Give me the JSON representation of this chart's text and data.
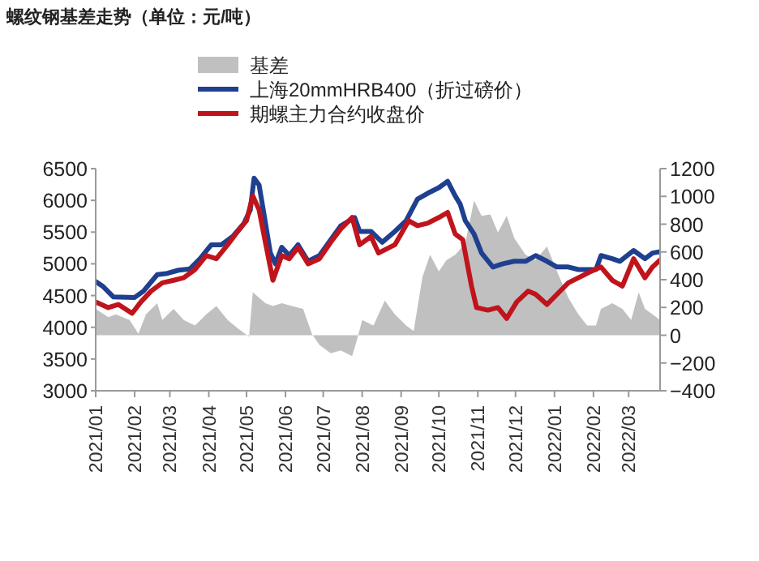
{
  "chart_data": {
    "type": "line",
    "title": "螺纹钢基差走势（单位：元/吨）",
    "legend": "top",
    "xlim": [
      "2021-01-01",
      "2022-03-26"
    ],
    "xticks": [
      {
        "value": "2021-01-01",
        "label": "2021/01"
      },
      {
        "value": "2021-02-01",
        "label": "2021/02"
      },
      {
        "value": "2021-03-01",
        "label": "2021/03"
      },
      {
        "value": "2021-04-01",
        "label": "2021/04"
      },
      {
        "value": "2021-05-01",
        "label": "2021/05"
      },
      {
        "value": "2021-06-01",
        "label": "2021/06"
      },
      {
        "value": "2021-07-01",
        "label": "2021/07"
      },
      {
        "value": "2021-08-01",
        "label": "2021/08"
      },
      {
        "value": "2021-09-01",
        "label": "2021/09"
      },
      {
        "value": "2021-10-01",
        "label": "2021/10"
      },
      {
        "value": "2021-11-01",
        "label": "2021/11"
      },
      {
        "value": "2021-12-01",
        "label": "2021/12"
      },
      {
        "value": "2022-01-01",
        "label": "2022/01"
      },
      {
        "value": "2022-02-01",
        "label": "2022/02"
      },
      {
        "value": "2022-03-01",
        "label": "2022/03"
      }
    ],
    "ylim": [
      3000,
      6500
    ],
    "yticks": [
      3000,
      3500,
      4000,
      4500,
      5000,
      5500,
      6000,
      6500
    ],
    "y2lim": [
      -400,
      1200
    ],
    "y2ticks": [
      -400,
      -200,
      0,
      200,
      400,
      600,
      800,
      1000,
      1200
    ],
    "series": [
      {
        "name": "基差",
        "type": "area",
        "axis": "y2",
        "color": "#c0c0c0",
        "x": [
          "2021-01-01",
          "2021-01-11",
          "2021-01-17",
          "2021-01-28",
          "2021-02-04",
          "2021-02-10",
          "2021-02-19",
          "2021-02-23",
          "2021-03-04",
          "2021-03-12",
          "2021-03-21",
          "2021-03-30",
          "2021-04-07",
          "2021-04-16",
          "2021-04-24",
          "2021-05-03",
          "2021-05-06",
          "2021-05-16",
          "2021-05-22",
          "2021-05-29",
          "2021-06-06",
          "2021-06-15",
          "2021-06-22",
          "2021-06-28",
          "2021-07-07",
          "2021-07-15",
          "2021-07-24",
          "2021-07-28",
          "2021-08-01",
          "2021-08-10",
          "2021-08-19",
          "2021-08-27",
          "2021-09-05",
          "2021-09-11",
          "2021-09-18",
          "2021-09-24",
          "2021-10-01",
          "2021-10-07",
          "2021-10-14",
          "2021-10-22",
          "2021-10-29",
          "2021-11-04",
          "2021-11-11",
          "2021-11-17",
          "2021-11-24",
          "2021-11-30",
          "2021-12-09",
          "2021-12-17",
          "2021-12-26",
          "2022-01-03",
          "2022-01-12",
          "2022-01-20",
          "2022-01-27",
          "2022-02-03",
          "2022-02-07",
          "2022-02-16",
          "2022-02-24",
          "2022-03-03",
          "2022-03-09",
          "2022-03-14",
          "2022-03-20",
          "2022-03-26"
        ],
        "values": [
          190,
          130,
          150,
          110,
          10,
          150,
          230,
          110,
          190,
          110,
          70,
          150,
          210,
          110,
          50,
          -10,
          310,
          230,
          210,
          230,
          210,
          190,
          10,
          -70,
          -130,
          -110,
          -150,
          -30,
          110,
          70,
          250,
          150,
          70,
          30,
          420,
          580,
          460,
          540,
          580,
          660,
          970,
          860,
          870,
          740,
          860,
          700,
          580,
          540,
          640,
          460,
          270,
          150,
          70,
          70,
          190,
          230,
          190,
          110,
          310,
          190,
          150,
          110
        ]
      },
      {
        "name": "上海20mmHRB400（折过磅价）",
        "type": "line",
        "color": "#1f3f8f",
        "x": [
          "2021-01-01",
          "2021-01-07",
          "2021-01-15",
          "2021-02-01",
          "2021-02-08",
          "2021-02-19",
          "2021-02-27",
          "2021-03-08",
          "2021-03-17",
          "2021-03-25",
          "2021-04-03",
          "2021-04-11",
          "2021-04-20",
          "2021-04-29",
          "2021-05-04",
          "2021-05-07",
          "2021-05-11",
          "2021-05-15",
          "2021-05-20",
          "2021-05-24",
          "2021-05-29",
          "2021-06-04",
          "2021-06-11",
          "2021-06-19",
          "2021-06-28",
          "2021-07-07",
          "2021-07-15",
          "2021-07-26",
          "2021-07-30",
          "2021-08-08",
          "2021-08-17",
          "2021-08-27",
          "2021-09-05",
          "2021-09-14",
          "2021-09-22",
          "2021-10-01",
          "2021-10-08",
          "2021-10-14",
          "2021-10-18",
          "2021-10-22",
          "2021-10-29",
          "2021-11-04",
          "2021-11-13",
          "2021-11-21",
          "2021-11-30",
          "2021-12-09",
          "2021-12-17",
          "2021-12-26",
          "2022-01-03",
          "2022-01-12",
          "2022-01-20",
          "2022-02-03",
          "2022-02-07",
          "2022-02-16",
          "2022-02-22",
          "2022-03-05",
          "2022-03-14",
          "2022-03-20",
          "2022-03-26"
        ],
        "values": [
          4720,
          4640,
          4480,
          4470,
          4570,
          4830,
          4850,
          4900,
          4920,
          5080,
          5300,
          5300,
          5430,
          5640,
          5850,
          6350,
          6240,
          5770,
          5170,
          5000,
          5260,
          5130,
          5300,
          5040,
          5130,
          5380,
          5600,
          5730,
          5510,
          5510,
          5340,
          5510,
          5680,
          6020,
          6110,
          6200,
          6300,
          6070,
          5940,
          5680,
          5470,
          5170,
          4950,
          5000,
          5040,
          5040,
          5130,
          5040,
          4950,
          4950,
          4910,
          4910,
          5130,
          5080,
          5040,
          5210,
          5080,
          5170,
          5190
        ]
      },
      {
        "name": "期螺主力合约收盘价",
        "type": "line",
        "color": "#c0141c",
        "x": [
          "2021-01-01",
          "2021-01-11",
          "2021-01-19",
          "2021-01-30",
          "2021-02-06",
          "2021-02-14",
          "2021-02-23",
          "2021-03-04",
          "2021-03-12",
          "2021-03-21",
          "2021-03-30",
          "2021-04-07",
          "2021-04-16",
          "2021-04-24",
          "2021-05-01",
          "2021-05-06",
          "2021-05-11",
          "2021-05-16",
          "2021-05-22",
          "2021-05-29",
          "2021-06-04",
          "2021-06-11",
          "2021-06-19",
          "2021-06-28",
          "2021-07-07",
          "2021-07-15",
          "2021-07-24",
          "2021-07-30",
          "2021-08-08",
          "2021-08-14",
          "2021-08-27",
          "2021-09-07",
          "2021-09-14",
          "2021-09-22",
          "2021-10-01",
          "2021-10-08",
          "2021-10-14",
          "2021-10-20",
          "2021-10-27",
          "2021-10-31",
          "2021-11-09",
          "2021-11-17",
          "2021-11-24",
          "2021-12-02",
          "2021-12-11",
          "2021-12-17",
          "2021-12-26",
          "2022-01-03",
          "2022-01-12",
          "2022-01-20",
          "2022-01-29",
          "2022-02-07",
          "2022-02-16",
          "2022-02-24",
          "2022-03-05",
          "2022-03-14",
          "2022-03-20",
          "2022-03-26"
        ],
        "values": [
          4400,
          4310,
          4360,
          4220,
          4400,
          4570,
          4700,
          4740,
          4780,
          4910,
          5130,
          5080,
          5300,
          5510,
          5680,
          6070,
          5850,
          5340,
          4740,
          5130,
          5080,
          5260,
          5000,
          5080,
          5340,
          5550,
          5730,
          5300,
          5430,
          5170,
          5300,
          5680,
          5600,
          5640,
          5730,
          5810,
          5470,
          5380,
          4650,
          4310,
          4270,
          4310,
          4140,
          4400,
          4570,
          4520,
          4360,
          4520,
          4700,
          4780,
          4870,
          4950,
          4740,
          4650,
          5080,
          4780,
          4950,
          5060
        ]
      }
    ]
  }
}
